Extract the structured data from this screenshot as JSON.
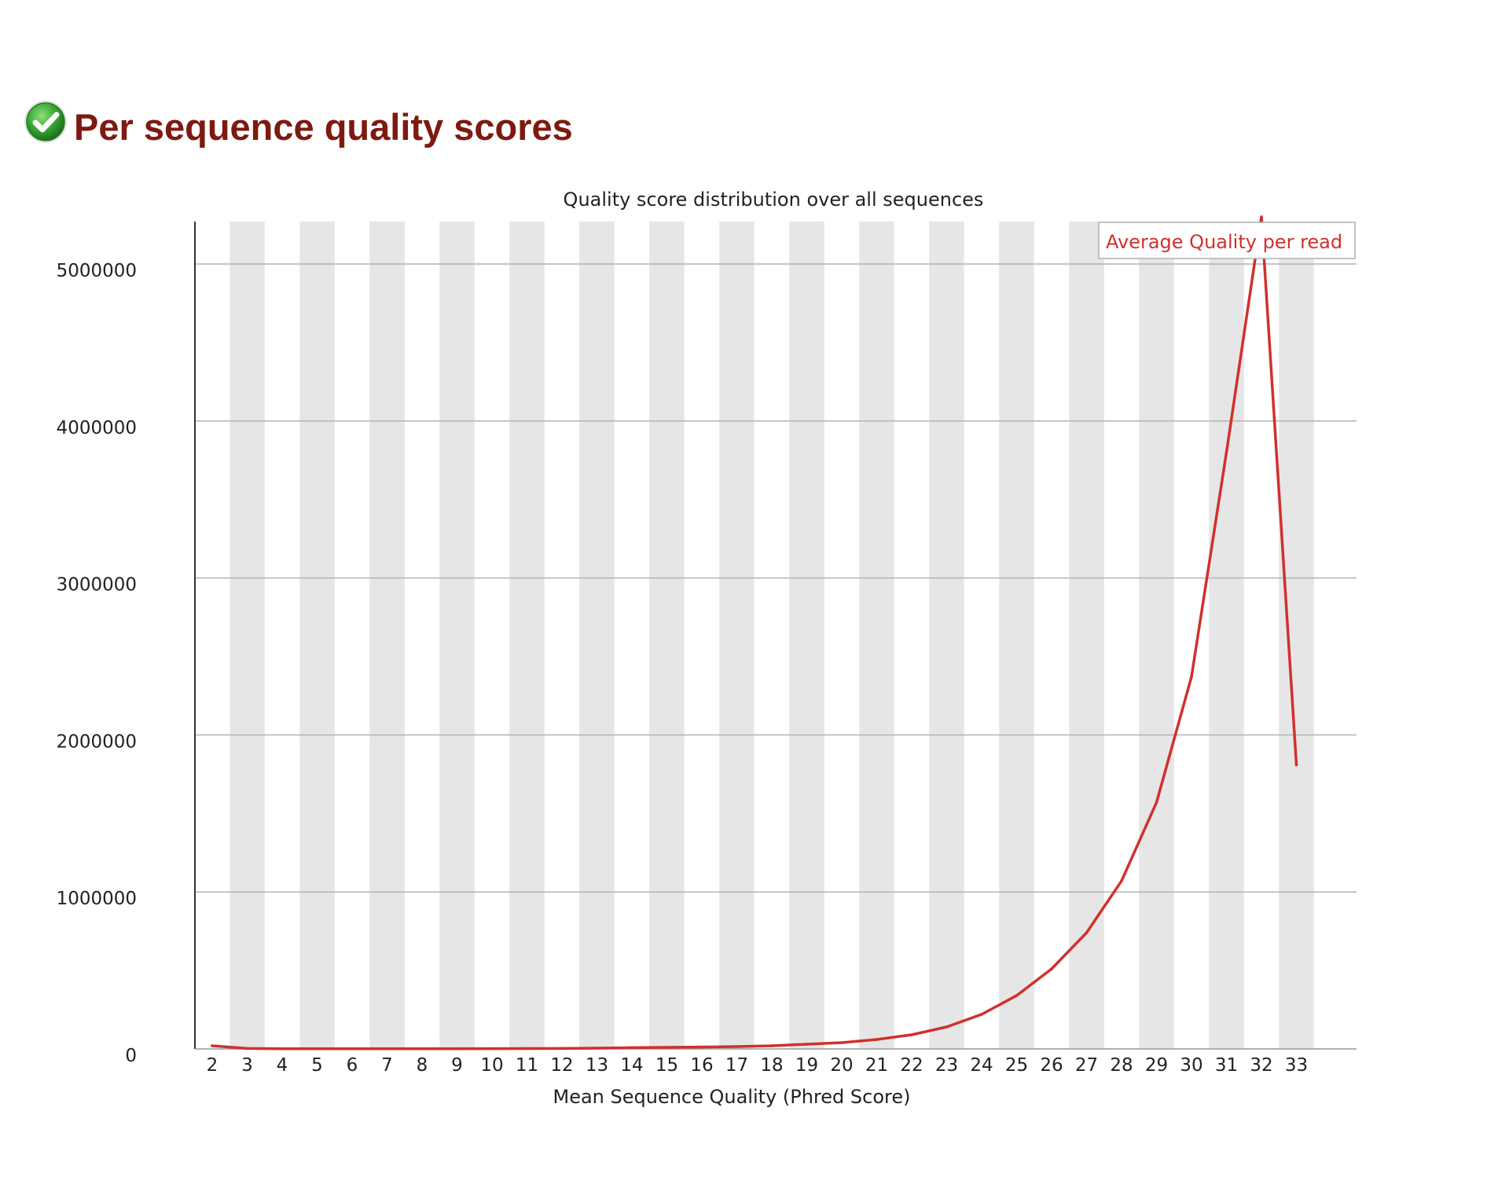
{
  "module": {
    "title": "Per sequence quality scores",
    "status_icon": "check-circle-icon",
    "status": "pass"
  },
  "colors": {
    "title": "#7d1a10",
    "line": "#d0312d",
    "band": "#e6e6e6",
    "grid": "#b4b4b4",
    "status_green": "#3aa935"
  },
  "chart_data": {
    "type": "line",
    "title": "Quality score distribution over all sequences",
    "xlabel": "Mean Sequence Quality (Phred Score)",
    "ylabel": "",
    "x": [
      2,
      3,
      4,
      5,
      6,
      7,
      8,
      9,
      10,
      11,
      12,
      13,
      14,
      15,
      16,
      17,
      18,
      19,
      20,
      21,
      22,
      23,
      24,
      25,
      26,
      27,
      28,
      29,
      30,
      31,
      32,
      33
    ],
    "x_tick_labels": [
      "2",
      "3",
      "4",
      "5",
      "6",
      "7",
      "8",
      "9",
      "10",
      "11",
      "12",
      "13",
      "14",
      "15",
      "16",
      "17",
      "18",
      "19",
      "20",
      "21",
      "22",
      "23",
      "24",
      "25",
      "26",
      "27",
      "28",
      "29",
      "30",
      "31",
      "32",
      "33"
    ],
    "series": [
      {
        "name": "Average Quality per read",
        "values": [
          20000,
          3000,
          1000,
          1000,
          1000,
          1000,
          1000,
          1500,
          2000,
          2500,
          3000,
          5000,
          8000,
          10000,
          12000,
          15000,
          20000,
          30000,
          40000,
          60000,
          90000,
          140000,
          220000,
          340000,
          510000,
          740000,
          1070000,
          1570000,
          2370000,
          3800000,
          5300000,
          1810000
        ]
      }
    ],
    "ylim": [
      0,
      5270000
    ],
    "y_ticks": [
      0,
      1000000,
      2000000,
      3000000,
      4000000,
      5000000
    ],
    "y_tick_labels": [
      "0",
      "1000000",
      "2000000",
      "3000000",
      "4000000",
      "5000000"
    ],
    "grid": true,
    "alternating_bands": true,
    "legend_position": "top-right"
  }
}
